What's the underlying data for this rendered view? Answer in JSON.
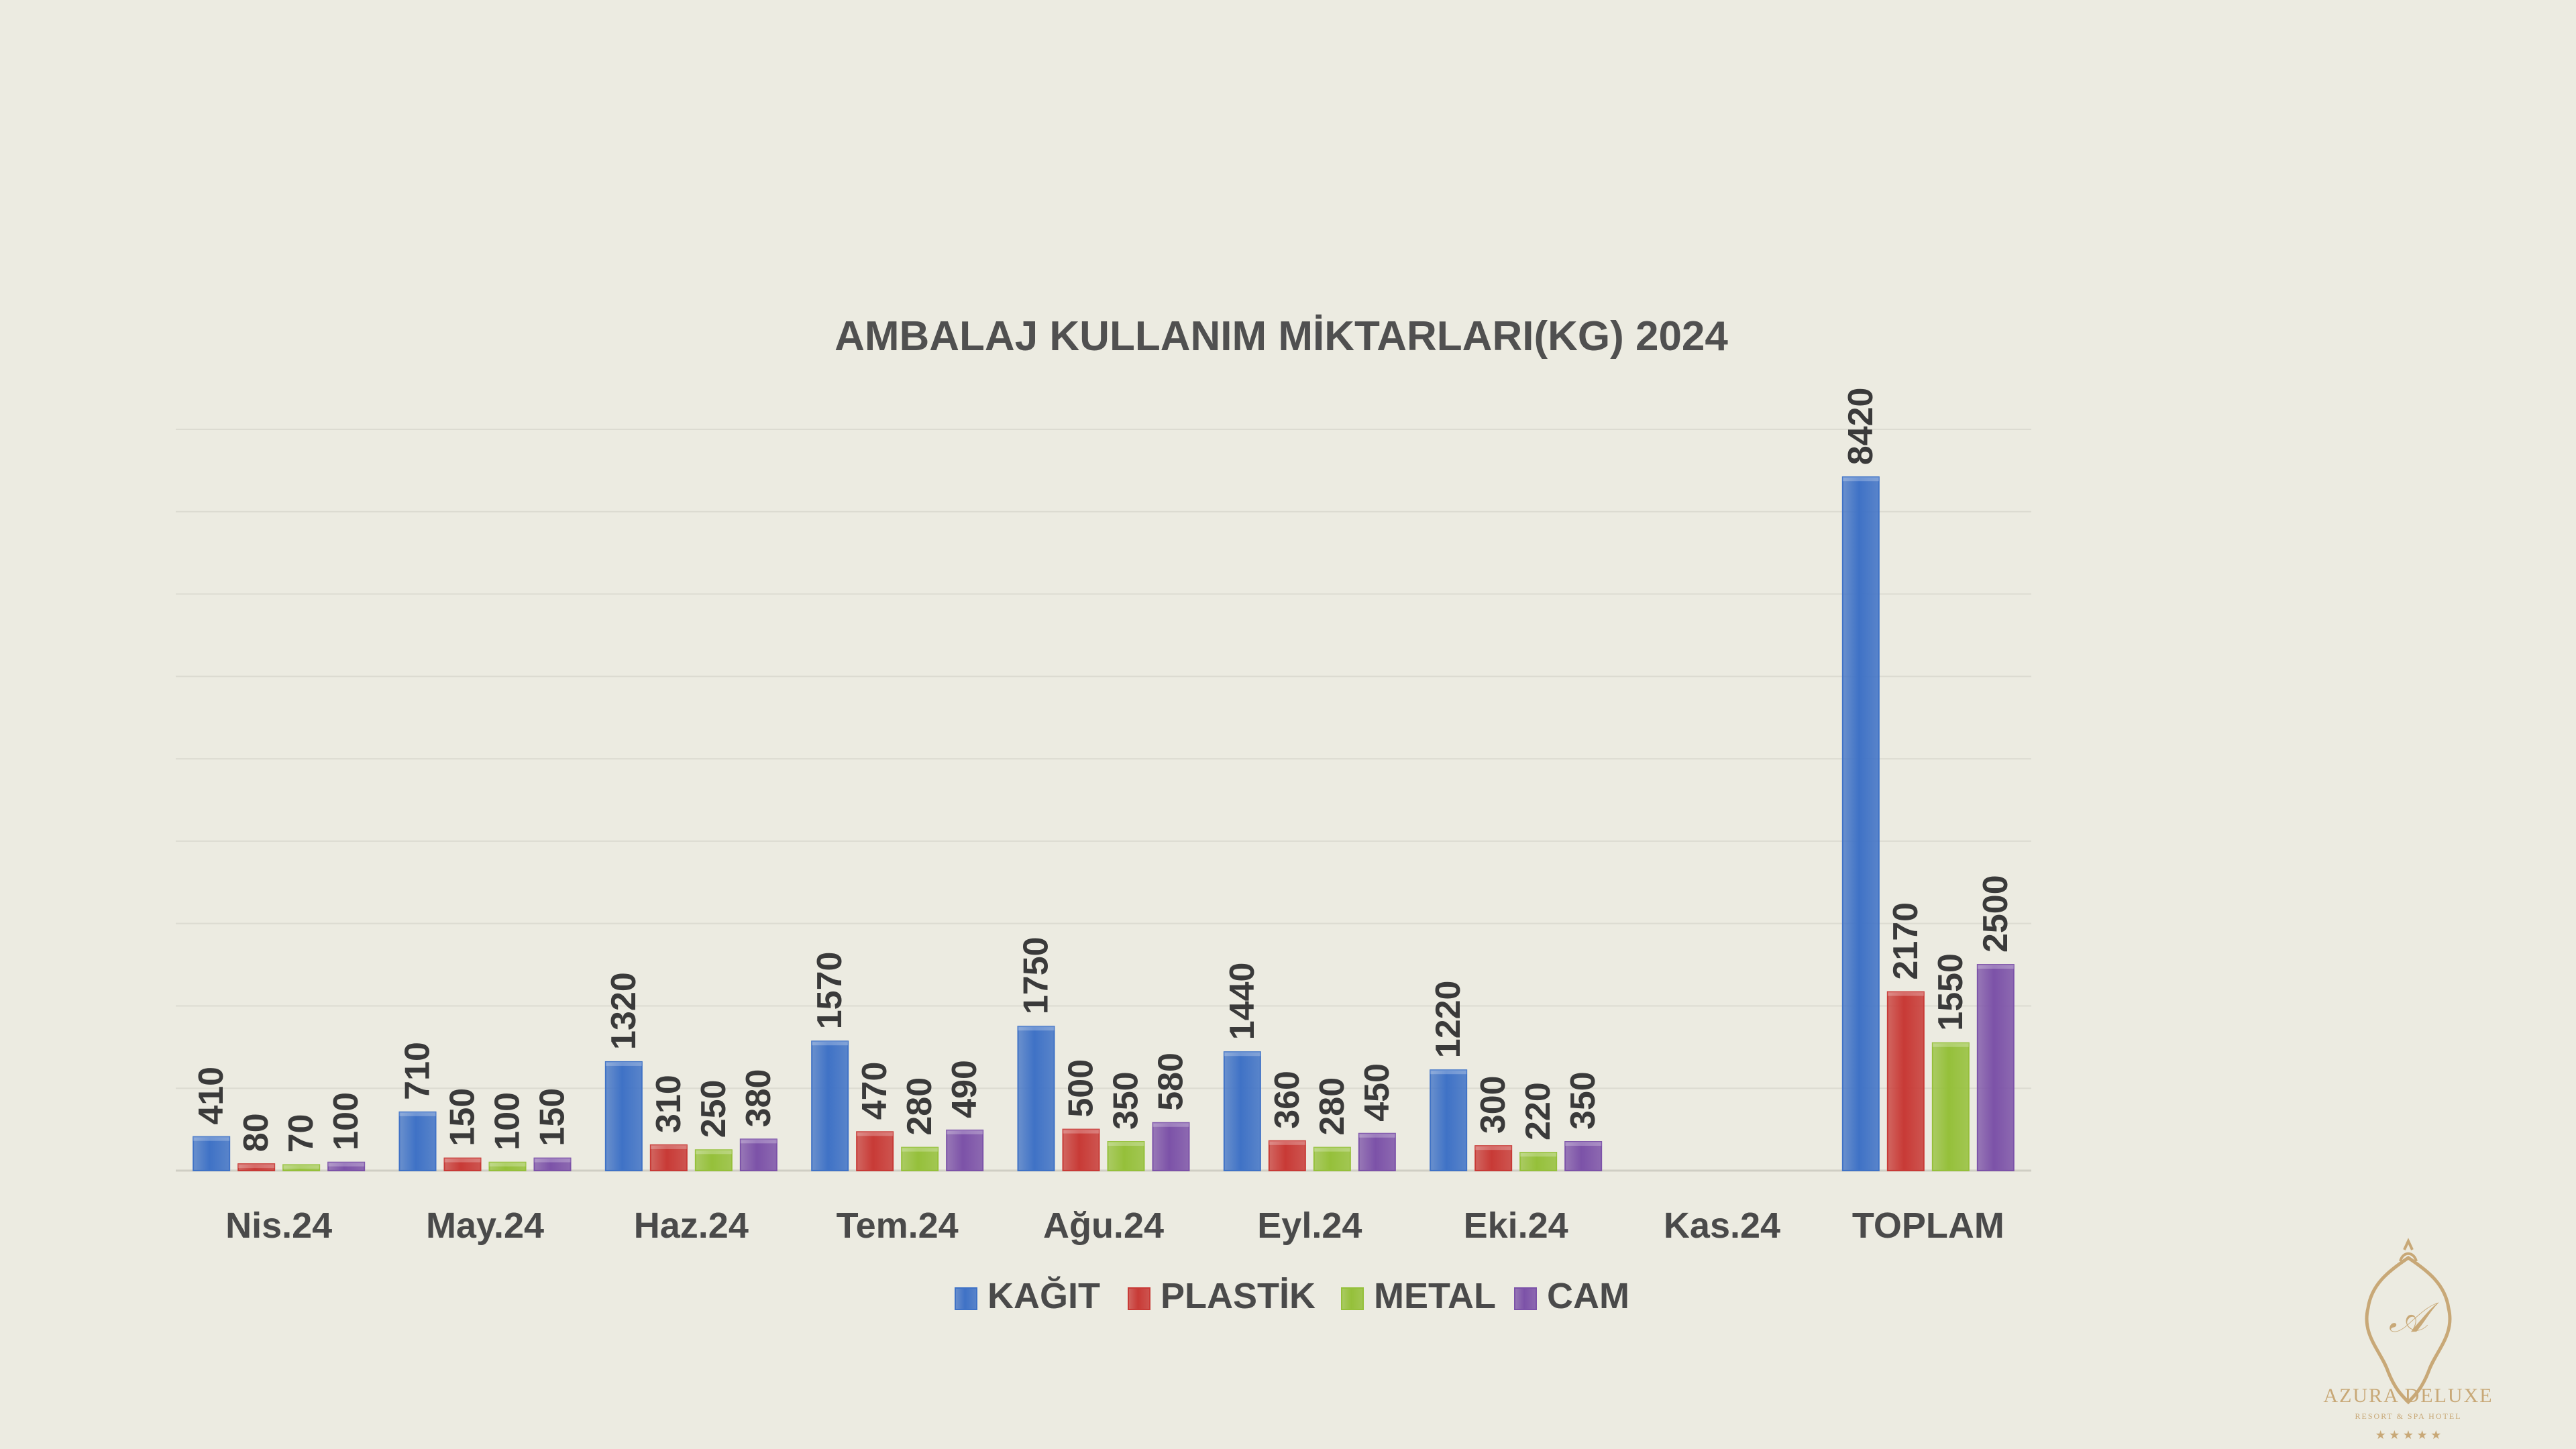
{
  "chart_data": {
    "type": "bar",
    "title": "AMBALAJ KULLANIM MİKTARLARI(KG) 2024",
    "xlabel": "",
    "ylabel": "",
    "categories": [
      "Nis.24",
      "May.24",
      "Haz.24",
      "Tem.24",
      "Ağu.24",
      "Eyl.24",
      "Eki.24",
      "Kas.24",
      "TOPLAM"
    ],
    "series": [
      {
        "name": "KAĞIT",
        "color": "#3f72c6",
        "values": [
          410,
          710,
          1320,
          1570,
          1750,
          1440,
          1220,
          null,
          8420
        ]
      },
      {
        "name": "PLASTİK",
        "color": "#c83a36",
        "values": [
          80,
          150,
          310,
          470,
          500,
          360,
          300,
          null,
          2170
        ]
      },
      {
        "name": "METAL",
        "color": "#95c03a",
        "values": [
          70,
          100,
          250,
          280,
          350,
          280,
          220,
          null,
          1550
        ]
      },
      {
        "name": "CAM",
        "color": "#7c52a8",
        "values": [
          100,
          150,
          380,
          490,
          580,
          450,
          350,
          null,
          2500
        ]
      }
    ],
    "ylim": [
      0,
      9000
    ],
    "grid": true,
    "legend": "bottom"
  },
  "logo": {
    "brand": "AZURA DELUXE",
    "tagline": "RESORT & SPA HOTEL",
    "stars": "★ ★ ★ ★ ★"
  }
}
